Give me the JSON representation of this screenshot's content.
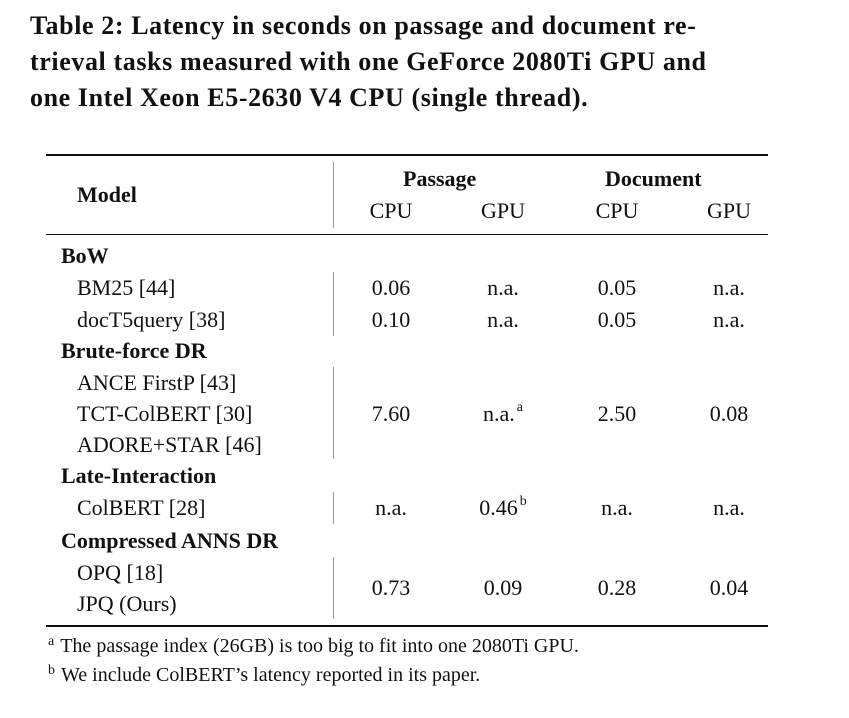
{
  "caption": "Table 2: Latency in seconds on passage and document retrieval tasks measured with one GeForce 2080Ti GPU and one Intel Xeon E5-2630 V4 CPU (single thread).",
  "caption_lines": [
    "Table 2: Latency in seconds on passage and document re-",
    "trieval tasks measured with one GeForce 2080Ti GPU and",
    "one Intel Xeon E5-2630 V4 CPU (single thread)."
  ],
  "header": {
    "model": "Model",
    "passage": "Passage",
    "document": "Document",
    "cpu": "CPU",
    "gpu": "GPU"
  },
  "groups": {
    "bow": {
      "label": "BoW",
      "bm25": {
        "name": "BM25 [44]",
        "p_cpu": "0.06",
        "p_gpu": "n.a.",
        "d_cpu": "0.05",
        "d_gpu": "n.a."
      },
      "doct5": {
        "name": "docT5query [38]",
        "p_cpu": "0.10",
        "p_gpu": "n.a.",
        "d_cpu": "0.05",
        "d_gpu": "n.a."
      }
    },
    "brute": {
      "label": "Brute-force DR",
      "models": [
        "ANCE FirstP [43]",
        "TCT-ColBERT [30]",
        "ADORE+STAR [46]"
      ],
      "p_cpu": "7.60",
      "p_gpu": "n.a.",
      "p_gpu_mark": "a",
      "d_cpu": "2.50",
      "d_gpu": "0.08"
    },
    "late": {
      "label": "Late-Interaction",
      "colbert": {
        "name": "ColBERT [28]",
        "p_cpu": "n.a.",
        "p_gpu": "0.46",
        "p_gpu_mark": "b",
        "d_cpu": "n.a.",
        "d_gpu": "n.a."
      }
    },
    "compressed": {
      "label": "Compressed ANNS DR",
      "models": [
        "OPQ [18]",
        "JPQ (Ours)"
      ],
      "p_cpu": "0.73",
      "p_gpu": "0.09",
      "d_cpu": "0.28",
      "d_gpu": "0.04"
    }
  },
  "footnotes": [
    {
      "mark": "a",
      "text": "The passage index (26GB) is too big to fit into one 2080Ti GPU."
    },
    {
      "mark": "b",
      "text": "We include ColBERT’s latency reported in its paper."
    }
  ]
}
